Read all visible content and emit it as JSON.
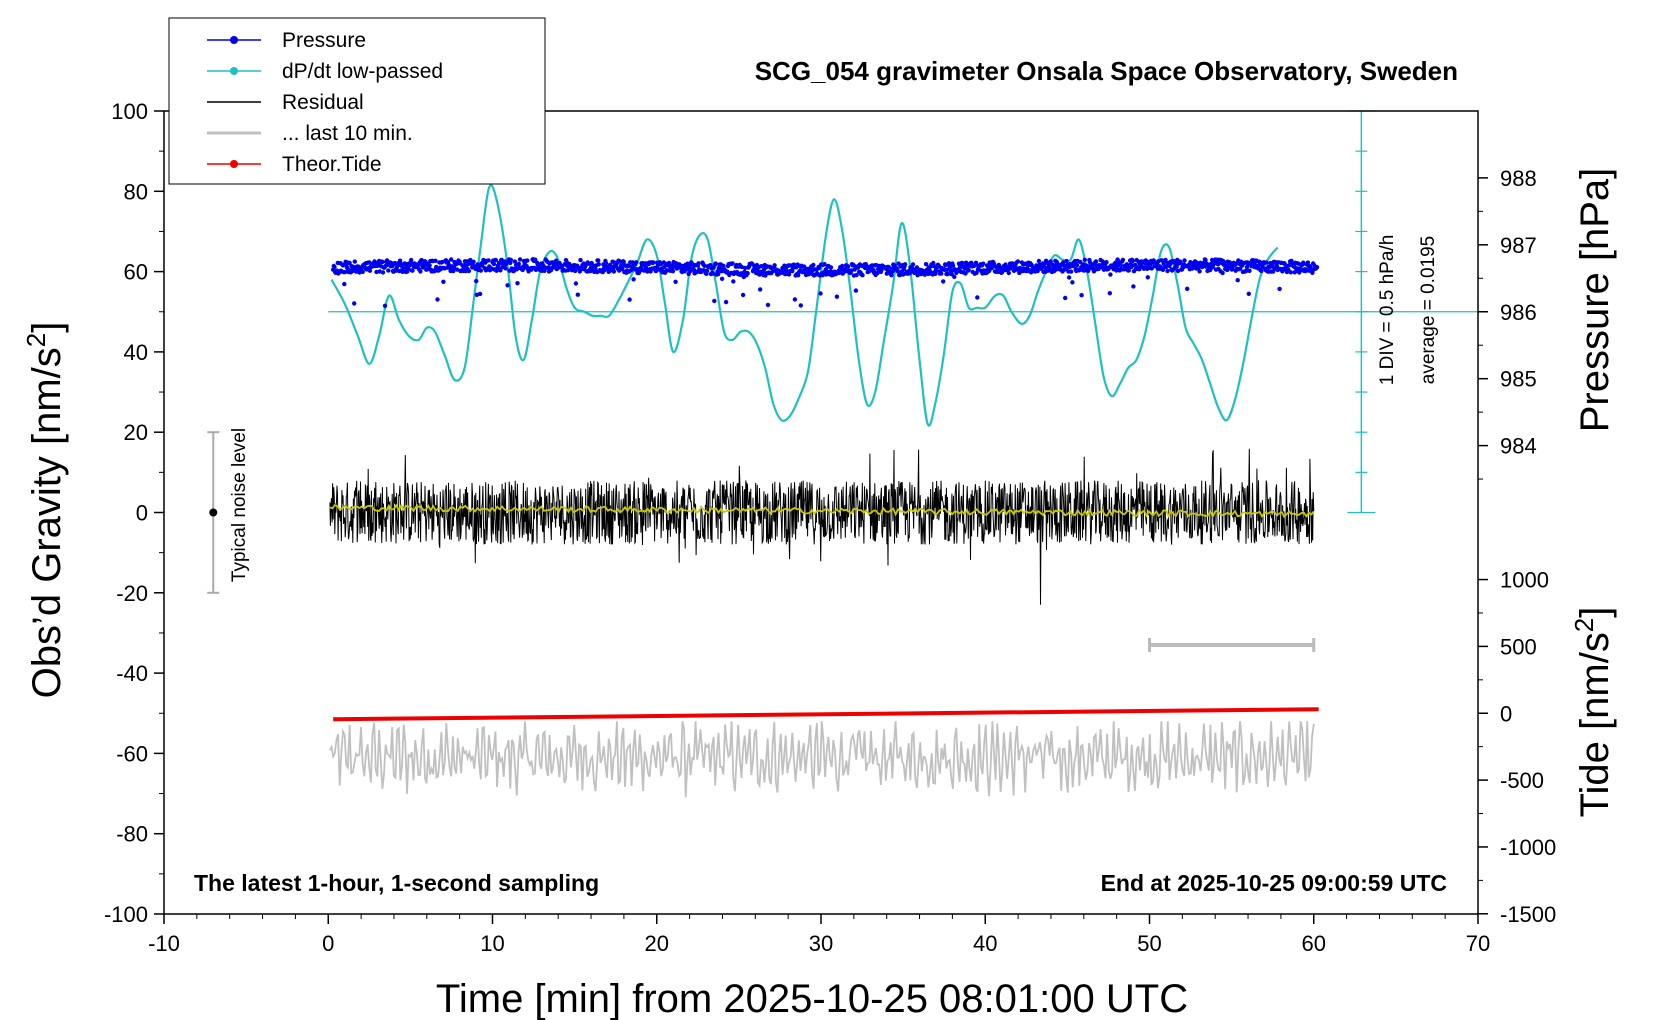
{
  "chart_data": {
    "type": "line",
    "title": "SCG_054 gravimeter Onsala Space Observatory, Sweden",
    "xlabel": "Time [min] from 2025-10-25 08:01:00 UTC",
    "ylabel_left_main": "Obs’d Gravity [nm/s",
    "ylabel_left_sup": "2",
    "ylabel_left_end": "]",
    "ylabel_right_pressure": "Pressure [hPa]",
    "ylabel_right_tide_main": "Tide [nm/s",
    "ylabel_right_tide_sup": "2",
    "ylabel_right_tide_end": "]",
    "xlim": [
      -10,
      70
    ],
    "ylim_left": [
      -100,
      100
    ],
    "x_ticks": [
      "-10",
      "0",
      "10",
      "20",
      "30",
      "40",
      "50",
      "60",
      "70"
    ],
    "y_ticks_left": [
      "100",
      "80",
      "60",
      "40",
      "20",
      "0",
      "-20",
      "-40",
      "-60",
      "-80",
      "-100"
    ],
    "pressure_axis": {
      "ticks": [
        "988",
        "987",
        "986",
        "985",
        "984"
      ],
      "tick_values": [
        988,
        987,
        986,
        985,
        984
      ],
      "gravity_at_986": 50,
      "gravity_per_hpa": 16.67
    },
    "tide_axis": {
      "ticks": [
        "1000",
        "500",
        "0",
        "-500",
        "-1000",
        "-1500"
      ],
      "tick_values": [
        1000,
        500,
        0,
        -500,
        -1000,
        -1500
      ],
      "gravity_at_0": -50,
      "gravity_per_unit": 0.0333
    },
    "dpdt_scale": {
      "x": 62.9,
      "y_min": 0,
      "y_max": 100,
      "divisions": 10,
      "label": "1 DIV = 0.5 hPa/h",
      "average": "average = 0.0195",
      "baseline": 50
    },
    "noise_level": {
      "label": "Typical noise level",
      "x": -7,
      "center": 0,
      "low": -20,
      "high": 20
    },
    "last10_bar": {
      "x_start": 50,
      "x_end": 60,
      "y": -33
    },
    "footer_left": "The latest 1-hour, 1-second sampling",
    "footer_right": "End at 2025-10-25 09:00:59 UTC",
    "legend": {
      "position": "top-left",
      "entries": [
        {
          "name": "Pressure",
          "color": "#0000ee",
          "marker": true
        },
        {
          "name": "dP/dt low-passed",
          "color": "#20c0c0",
          "marker": true
        },
        {
          "name": "Residual",
          "color": "#000000",
          "marker": false
        },
        {
          "name": "... last 10 min.",
          "color": "#c0c0c0",
          "marker": false
        },
        {
          "name": "Theor.Tide",
          "color": "#ee0000",
          "marker": true
        }
      ]
    },
    "series": [
      {
        "name": "dP/dt low-passed",
        "color": "#20c0c0",
        "x": [
          0.2,
          1.0,
          1.8,
          2.5,
          3.1,
          3.7,
          4.3,
          4.9,
          5.5,
          6.0,
          6.5,
          7.1,
          7.7,
          8.3,
          8.8,
          9.3,
          9.8,
          10.3,
          10.9,
          11.4,
          11.9,
          12.4,
          12.9,
          13.5,
          14.0,
          14.5,
          15.0,
          15.6,
          16.1,
          16.6,
          17.1,
          17.7,
          18.2,
          18.8,
          19.4,
          20.0,
          20.5,
          21.0,
          21.6,
          22.1,
          22.6,
          23.1,
          23.6,
          24.1,
          24.6,
          25.1,
          25.6,
          26.1,
          26.6,
          27.1,
          27.6,
          28.1,
          28.6,
          29.2,
          29.7,
          30.3,
          30.8,
          31.3,
          31.8,
          32.3,
          32.8,
          33.3,
          33.8,
          34.4,
          34.9,
          35.4,
          36.0,
          36.5,
          37.0,
          37.5,
          38.0,
          38.5,
          39.0,
          39.5,
          40.0,
          40.6,
          41.1,
          41.6,
          42.2,
          42.7,
          43.2,
          43.7,
          44.2,
          44.7,
          45.2,
          45.7,
          46.2,
          46.7,
          47.2,
          47.7,
          48.2,
          48.7,
          49.2,
          49.7,
          50.2,
          50.7,
          51.2,
          51.7,
          52.2,
          52.7,
          53.2,
          53.7,
          54.2,
          54.7,
          55.2,
          55.7,
          56.2,
          56.7,
          57.2,
          57.8
        ],
        "y": [
          58,
          52,
          44,
          37,
          44,
          54,
          48,
          44,
          43,
          46,
          45,
          39,
          33,
          36,
          51,
          67,
          81,
          77,
          62,
          44,
          38,
          48,
          60,
          65,
          63,
          56,
          51,
          50,
          49,
          49,
          49,
          53,
          57,
          62,
          68,
          64,
          52,
          40,
          48,
          63,
          69,
          68,
          57,
          45,
          43,
          45,
          45,
          42,
          36,
          27,
          23,
          24,
          28,
          35,
          50,
          69,
          78,
          70,
          55,
          38,
          27,
          30,
          42,
          57,
          72,
          62,
          38,
          22,
          28,
          40,
          55,
          57,
          51,
          51,
          51,
          54,
          54,
          50,
          47,
          49,
          55,
          60,
          64,
          63,
          63,
          68,
          60,
          47,
          34,
          29,
          32,
          36,
          38,
          44,
          54,
          65,
          66,
          57,
          46,
          42,
          38,
          32,
          26,
          23,
          28,
          37,
          48,
          58,
          63,
          66
        ]
      },
      {
        "name": "Pressure",
        "color": "#0000ee",
        "x_start": 0.3,
        "x_end": 60.2,
        "gravity_mean": 61,
        "gravity_jitter": 1.5,
        "gravity_drop_max": 9
      },
      {
        "name": "Residual",
        "color": "#000000",
        "x_start": 0.1,
        "x_end": 60.0,
        "mean": 0,
        "amplitude": 8,
        "spike_max": 16,
        "spike_min": -23
      },
      {
        "name": "Residual smoothed",
        "color": "#c8c800",
        "x_start": 0.1,
        "x_end": 60.0,
        "mean": 0,
        "amplitude": 1.5
      },
      {
        "name": "... last 10 min.",
        "color": "#c0c0c0",
        "x_start": 0.1,
        "x_end": 60.0,
        "mean": -61,
        "amplitude": 8,
        "min": -76,
        "max": -52
      },
      {
        "name": "Theor.Tide",
        "color": "#ee0000",
        "x": [
          0.3,
          60.3
        ],
        "y": [
          -51.5,
          -49
        ]
      }
    ]
  }
}
